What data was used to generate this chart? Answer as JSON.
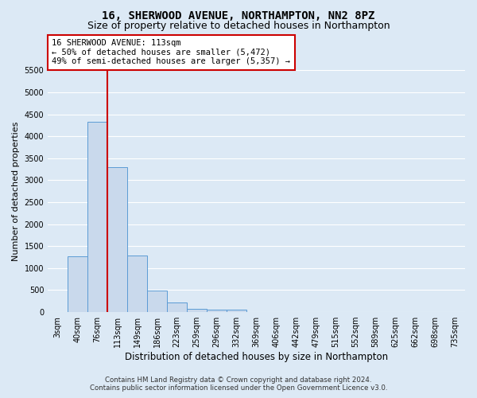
{
  "title_line1": "16, SHERWOOD AVENUE, NORTHAMPTON, NN2 8PZ",
  "title_line2": "Size of property relative to detached houses in Northampton",
  "xlabel": "Distribution of detached houses by size in Northampton",
  "ylabel": "Number of detached properties",
  "footer_line1": "Contains HM Land Registry data © Crown copyright and database right 2024.",
  "footer_line2": "Contains public sector information licensed under the Open Government Licence v3.0.",
  "annotation_line1": "16 SHERWOOD AVENUE: 113sqm",
  "annotation_line2": "← 50% of detached houses are smaller (5,472)",
  "annotation_line3": "49% of semi-detached houses are larger (5,357) →",
  "bar_categories": [
    "3sqm",
    "40sqm",
    "76sqm",
    "113sqm",
    "149sqm",
    "186sqm",
    "223sqm",
    "259sqm",
    "296sqm",
    "332sqm",
    "369sqm",
    "406sqm",
    "442sqm",
    "479sqm",
    "515sqm",
    "552sqm",
    "589sqm",
    "625sqm",
    "662sqm",
    "698sqm",
    "735sqm"
  ],
  "bar_values": [
    0,
    1270,
    4330,
    3300,
    1280,
    490,
    210,
    80,
    60,
    55,
    0,
    0,
    0,
    0,
    0,
    0,
    0,
    0,
    0,
    0,
    0
  ],
  "bar_color": "#c9d9ec",
  "bar_edge_color": "#5b9bd5",
  "vline_index": 2.5,
  "vline_color": "#cc0000",
  "ylim": [
    0,
    5500
  ],
  "yticks": [
    0,
    500,
    1000,
    1500,
    2000,
    2500,
    3000,
    3500,
    4000,
    4500,
    5000,
    5500
  ],
  "annotation_box_color": "#ffffff",
  "annotation_box_edge": "#cc0000",
  "background_color": "#dce9f5",
  "grid_color": "#ffffff",
  "title_fontsize": 10,
  "subtitle_fontsize": 9,
  "axis_label_fontsize": 8.5,
  "tick_fontsize": 7,
  "annotation_fontsize": 7.5,
  "ylabel_fontsize": 8
}
